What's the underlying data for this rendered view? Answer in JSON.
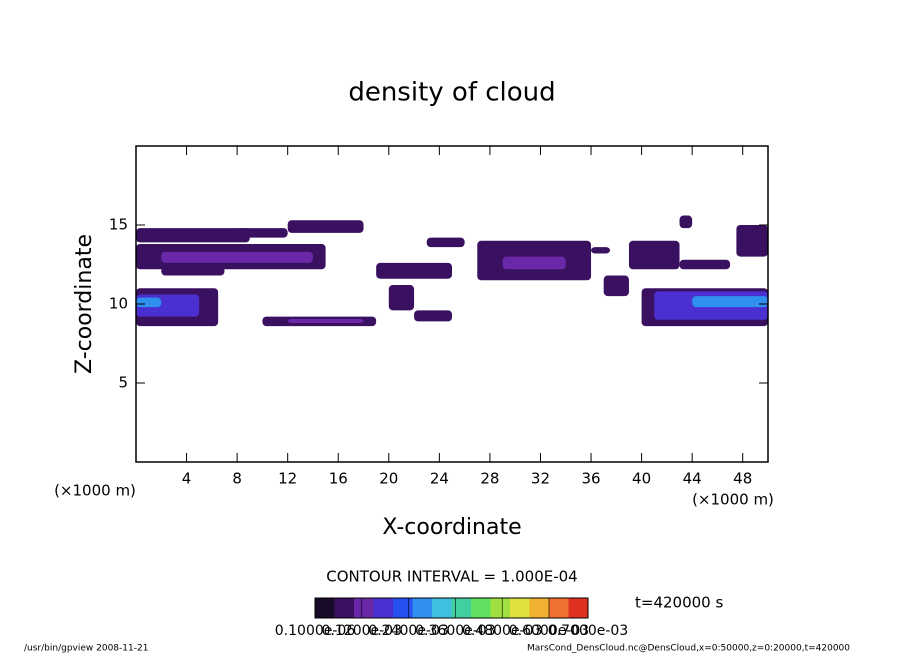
{
  "chart_data": {
    "type": "contour",
    "title": "density of cloud",
    "xlabel": "X-coordinate",
    "ylabel": "Z-coordinate",
    "xunit": "(×1000 m)",
    "yunit": "(×1000 m)",
    "xlim": [
      0,
      50
    ],
    "ylim": [
      0,
      20
    ],
    "xticks": [
      4,
      8,
      12,
      16,
      20,
      24,
      28,
      32,
      36,
      40,
      44,
      48
    ],
    "yticks": [
      5,
      10,
      15
    ],
    "contour_text": "CONTOUR INTERVAL = 1.000E-04",
    "time_text": "t=420000 s",
    "footer_left": "/usr/bin/gpview   2008-11-21",
    "footer_right": "MarsCond_DensCloud.nc@DensCloud,x=0:50000,z=0:20000,t=420000",
    "colorbar": {
      "clim": [
        1e-07,
        0.0007
      ],
      "colors": [
        "#1a0a2a",
        "#3a1060",
        "#6a28a8",
        "#4a30d0",
        "#2850f0",
        "#3090f0",
        "#40c0e0",
        "#40d0a0",
        "#60e060",
        "#a0e040",
        "#e0e040",
        "#f0b030",
        "#f07030",
        "#e03020"
      ],
      "ticks": [
        {
          "value": 1e-07,
          "label": "0.1000e-06"
        },
        {
          "value": 0.00012,
          "label": "0.1200e-03"
        },
        {
          "value": 0.00024,
          "label": "0.2400e-03"
        },
        {
          "value": 0.00036,
          "label": "0.3600e-03"
        },
        {
          "value": 0.00048,
          "label": "0.4800e-03"
        },
        {
          "value": 0.0006,
          "label": "0.6000e-03"
        },
        {
          "value": 0.0007,
          "label": "0.7000e-03"
        }
      ]
    },
    "patches": [
      {
        "x": [
          0,
          9
        ],
        "z": [
          13.9,
          14.8
        ],
        "value": 0.0001
      },
      {
        "x": [
          0,
          15
        ],
        "z": [
          12.2,
          13.8
        ],
        "value": 0.0001
      },
      {
        "x": [
          2,
          14
        ],
        "z": [
          12.6,
          13.3
        ],
        "value": 0.00015
      },
      {
        "x": [
          2,
          7
        ],
        "z": [
          11.8,
          12.4
        ],
        "value": 0.0001
      },
      {
        "x": [
          12,
          18
        ],
        "z": [
          14.5,
          15.3
        ],
        "value": 0.0001
      },
      {
        "x": [
          8,
          12
        ],
        "z": [
          14.2,
          14.8
        ],
        "value": 0.0001
      },
      {
        "x": [
          0,
          6.5
        ],
        "z": [
          8.6,
          11
        ],
        "value": 0.0001
      },
      {
        "x": [
          0,
          5
        ],
        "z": [
          9.2,
          10.6
        ],
        "value": 0.0002
      },
      {
        "x": [
          0,
          2
        ],
        "z": [
          9.8,
          10.4
        ],
        "value": 0.0003
      },
      {
        "x": [
          10,
          19
        ],
        "z": [
          8.6,
          9.2
        ],
        "value": 0.0001
      },
      {
        "x": [
          12,
          18
        ],
        "z": [
          8.8,
          9.05
        ],
        "value": 0.00015
      },
      {
        "x": [
          19,
          25
        ],
        "z": [
          11.6,
          12.6
        ],
        "value": 0.0001
      },
      {
        "x": [
          20,
          22
        ],
        "z": [
          9.6,
          11.2
        ],
        "value": 0.0001
      },
      {
        "x": [
          22,
          25
        ],
        "z": [
          8.9,
          9.6
        ],
        "value": 0.0001
      },
      {
        "x": [
          23,
          26
        ],
        "z": [
          13.6,
          14.2
        ],
        "value": 0.0001
      },
      {
        "x": [
          27,
          36
        ],
        "z": [
          11.5,
          14
        ],
        "value": 0.0001
      },
      {
        "x": [
          29,
          34
        ],
        "z": [
          12.2,
          13
        ],
        "value": 0.00015
      },
      {
        "x": [
          36,
          37.5
        ],
        "z": [
          13.2,
          13.6
        ],
        "value": 0.0001
      },
      {
        "x": [
          37,
          39
        ],
        "z": [
          10.5,
          11.8
        ],
        "value": 0.0001
      },
      {
        "x": [
          39,
          43
        ],
        "z": [
          12.2,
          14
        ],
        "value": 0.0001
      },
      {
        "x": [
          43,
          47
        ],
        "z": [
          12.2,
          12.8
        ],
        "value": 0.0001
      },
      {
        "x": [
          43,
          44
        ],
        "z": [
          14.8,
          15.6
        ],
        "value": 0.0001
      },
      {
        "x": [
          40,
          50
        ],
        "z": [
          8.6,
          11
        ],
        "value": 0.0001
      },
      {
        "x": [
          41,
          50
        ],
        "z": [
          9,
          10.8
        ],
        "value": 0.0002
      },
      {
        "x": [
          44,
          50
        ],
        "z": [
          9.8,
          10.5
        ],
        "value": 0.0003
      },
      {
        "x": [
          47.5,
          50
        ],
        "z": [
          13,
          15
        ],
        "value": 0.0001
      }
    ]
  }
}
